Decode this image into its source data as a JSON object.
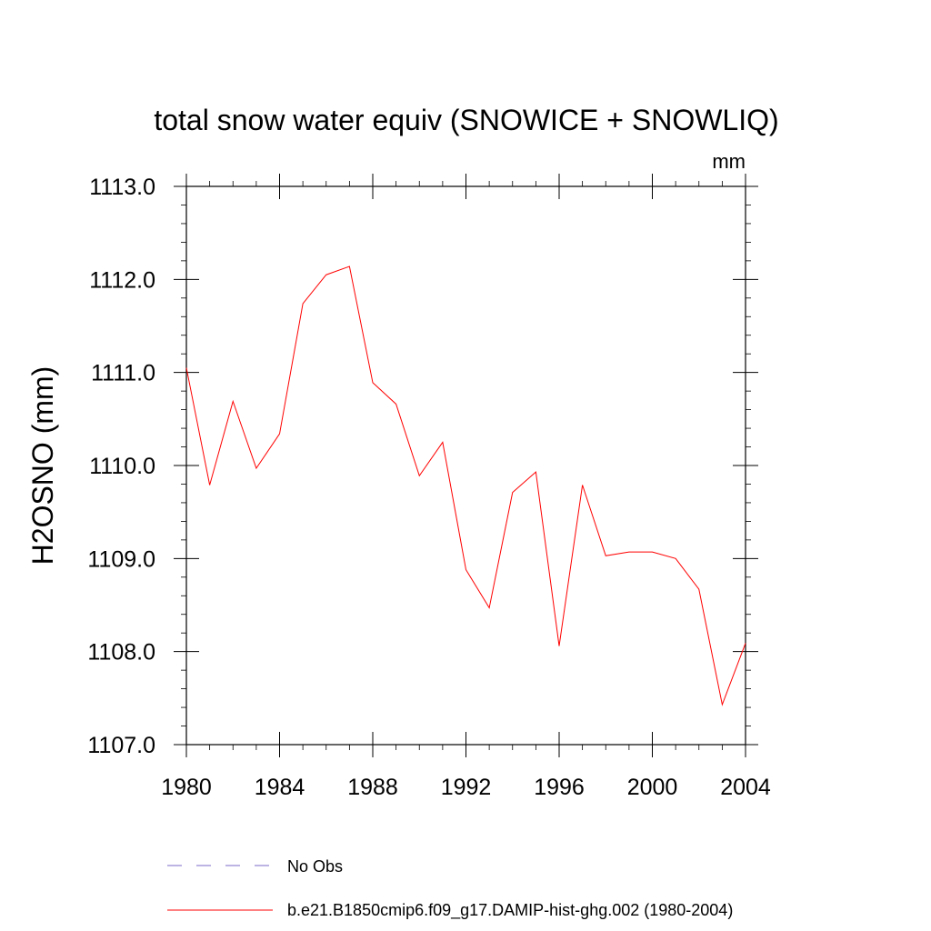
{
  "chart_data": {
    "type": "line",
    "title": "total snow water equiv (SNOWICE + SNOWLIQ)",
    "units": "mm",
    "xlabel": "",
    "ylabel": "H2OSNO  (mm)",
    "xlim": [
      1980,
      2004
    ],
    "ylim": [
      1107.0,
      1113.0
    ],
    "x_ticks": [
      1980,
      1984,
      1988,
      1992,
      1996,
      2000,
      2004
    ],
    "x_tick_labels": [
      "1980",
      "1984",
      "1988",
      "1992",
      "1996",
      "2000",
      "2004"
    ],
    "y_ticks": [
      1107.0,
      1108.0,
      1109.0,
      1110.0,
      1111.0,
      1112.0,
      1113.0
    ],
    "y_tick_labels": [
      "1107.0",
      "1108.0",
      "1109.0",
      "1110.0",
      "1111.0",
      "1112.0",
      "1113.0"
    ],
    "grid": false,
    "legend_position": "bottom",
    "series": [
      {
        "name": "No Obs",
        "style": "dashed",
        "color": "#7b68c8",
        "x": [],
        "values": []
      },
      {
        "name": "b.e21.B1850cmip6.f09_g17.DAMIP-hist-ghg.002 (1980-2004)",
        "style": "solid",
        "color": "#ff0000",
        "x": [
          1980,
          1981,
          1982,
          1983,
          1984,
          1985,
          1986,
          1987,
          1988,
          1989,
          1990,
          1991,
          1992,
          1993,
          1994,
          1995,
          1996,
          1997,
          1998,
          1999,
          2000,
          2001,
          2002,
          2003,
          2004
        ],
        "values": [
          1111.05,
          1109.79,
          1110.69,
          1109.97,
          1110.34,
          1111.74,
          1112.05,
          1112.14,
          1110.89,
          1110.66,
          1109.89,
          1110.25,
          1108.88,
          1108.47,
          1109.71,
          1109.93,
          1108.06,
          1109.79,
          1109.03,
          1109.07,
          1109.07,
          1109.0,
          1108.67,
          1107.43,
          1108.09
        ]
      }
    ]
  }
}
